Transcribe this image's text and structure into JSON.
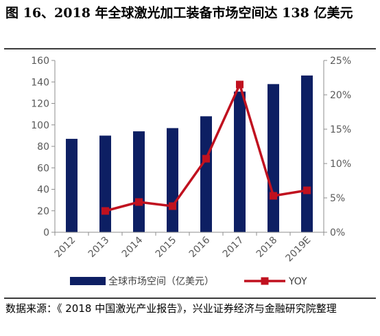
{
  "figure": {
    "title": "图 16、2018 年全球激光加工装备市场空间达 138 亿美元",
    "source": "数据来源：《 2018 中国激光产业报告》，兴业证券经济与金融研究院整理"
  },
  "chart_data": {
    "type": "bar+line",
    "categories": [
      "2012",
      "2013",
      "2014",
      "2015",
      "2016",
      "2017",
      "2018",
      "2019E"
    ],
    "series": [
      {
        "name": "全球市场空间（亿美元）",
        "type": "bar",
        "axis": "left",
        "values": [
          87,
          90,
          94,
          97,
          108,
          131,
          138,
          146
        ],
        "color": "#0d1f63"
      },
      {
        "name": "YOY",
        "type": "line",
        "axis": "right",
        "values": [
          null,
          3.1,
          4.4,
          3.8,
          10.7,
          21.5,
          5.3,
          6.1
        ],
        "color": "#c0111f"
      }
    ],
    "y_left": {
      "min": 0,
      "max": 160,
      "step": 20,
      "ticks": [
        "0",
        "20",
        "40",
        "60",
        "80",
        "100",
        "120",
        "140",
        "160"
      ]
    },
    "y_right": {
      "min": 0,
      "max": 25,
      "step": 5,
      "unit": "%",
      "ticks": [
        "0%",
        "5%",
        "10%",
        "15%",
        "20%",
        "25%"
      ]
    },
    "legend_position": "bottom",
    "grid": false
  }
}
